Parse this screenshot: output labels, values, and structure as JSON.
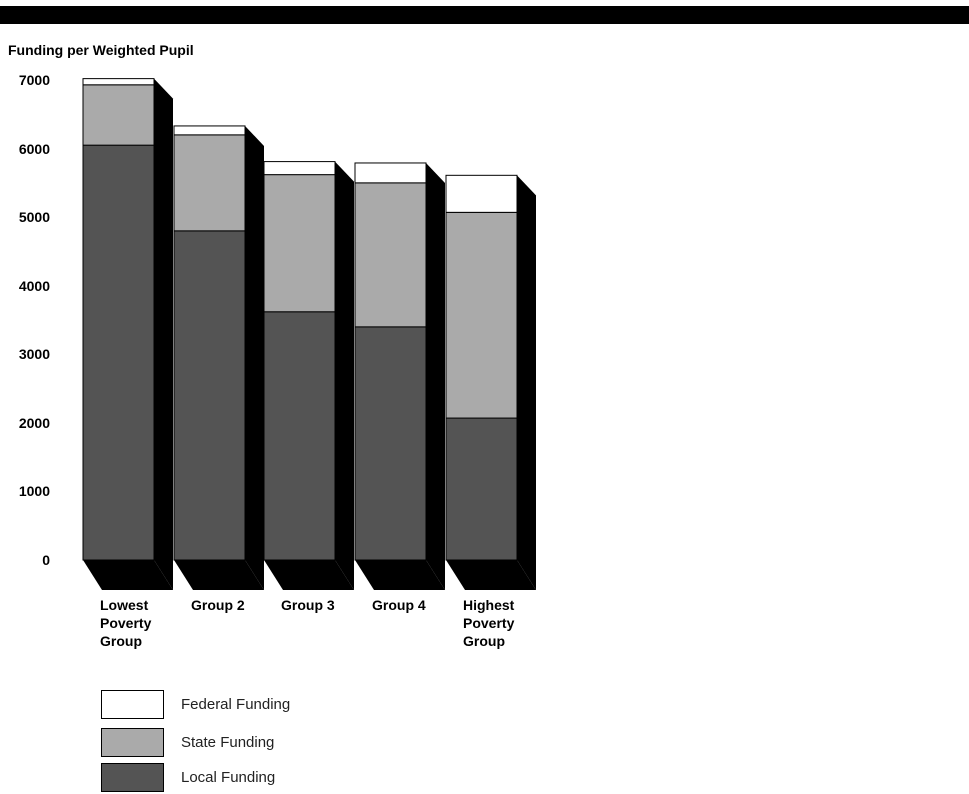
{
  "chart_data": {
    "type": "bar",
    "stacked": true,
    "title": "Funding per Weighted Pupil",
    "ylim": [
      0,
      7000
    ],
    "yticks": [
      "7000",
      "6000",
      "5000",
      "4000",
      "3000",
      "2000",
      "1000",
      "0"
    ],
    "categories": [
      "Lowest Poverty Group",
      "Group 2",
      "Group 3",
      "Group 4",
      "Highest Poverty Group"
    ],
    "category_lines": [
      [
        "Lowest",
        "Poverty",
        "Group"
      ],
      [
        "Group 2"
      ],
      [
        "Group 3"
      ],
      [
        "Group 4"
      ],
      [
        "Highest",
        "Poverty",
        "Group"
      ]
    ],
    "series": [
      {
        "name": "Local Funding",
        "color": "#545454",
        "values": [
          6050,
          4800,
          3620,
          3400,
          2070
        ]
      },
      {
        "name": "State Funding",
        "color": "#aaaaaa",
        "values": [
          880,
          1400,
          2000,
          2100,
          3000
        ]
      },
      {
        "name": "Federal Funding",
        "color": "#ffffff",
        "values": [
          90,
          130,
          190,
          290,
          540
        ]
      }
    ],
    "legend": [
      {
        "label": "Federal Funding",
        "color": "#ffffff"
      },
      {
        "label": "State Funding",
        "color": "#aaaaaa"
      },
      {
        "label": "Local Funding",
        "color": "#545454"
      }
    ],
    "shadow_color": "#000000",
    "grid": false
  }
}
